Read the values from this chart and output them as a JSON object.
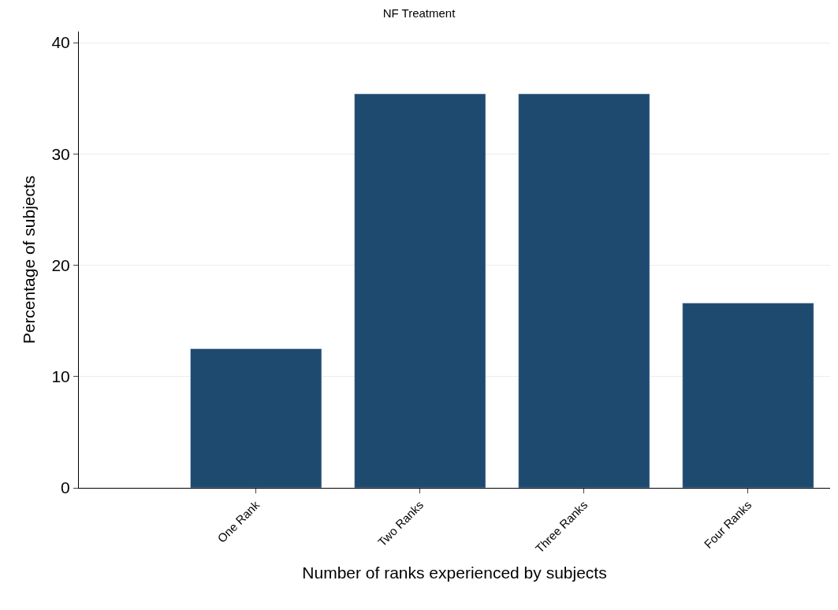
{
  "chart_data": {
    "type": "bar",
    "title": "NF Treatment",
    "xlabel": "Number of ranks experienced by subjects",
    "ylabel": "Percentage of subjects",
    "categories": [
      "One Rank",
      "Two Ranks",
      "Three Ranks",
      "Four Ranks"
    ],
    "values": [
      12.5,
      35.4,
      35.4,
      16.6
    ],
    "color": "#1f4a70",
    "ylim": [
      0,
      41
    ],
    "yticks": [
      0,
      10,
      20,
      30,
      40
    ],
    "grid": "y",
    "legend": false
  }
}
